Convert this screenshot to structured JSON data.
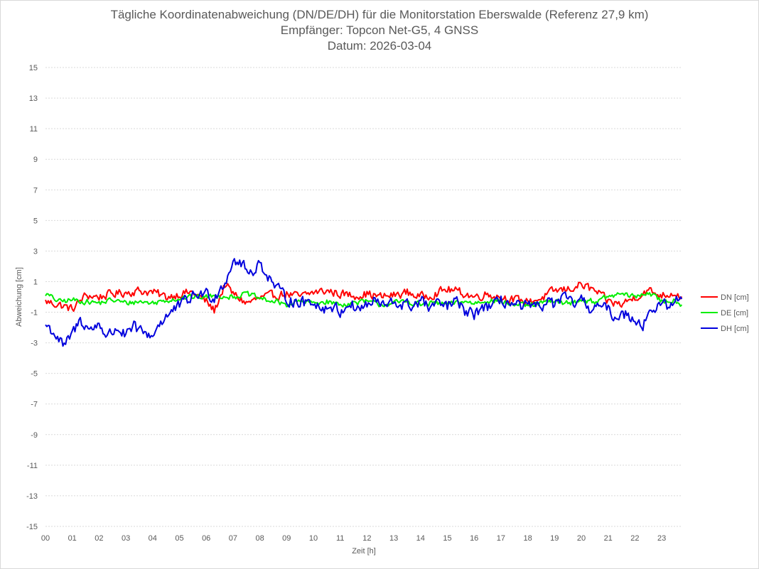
{
  "chart_data": {
    "type": "line",
    "title_lines": [
      "Tägliche Koordinatenabweichung (DN/DE/DH) für die Monitorstation Eberswalde (Referenz 27,9 km)",
      "Empfänger: Topcon Net-G5, 4 GNSS",
      "Datum: 2026-03-04"
    ],
    "xlabel": "Zeit [h]",
    "ylabel": "Abweichung [cm]",
    "ylim": [
      -15,
      15
    ],
    "xlim": [
      0,
      24
    ],
    "yticks": [
      "15",
      "13",
      "11",
      "9",
      "7",
      "5",
      "3",
      "1",
      "-1",
      "-3",
      "-5",
      "-7",
      "-9",
      "-11",
      "-13",
      "-15"
    ],
    "xticks": [
      "00",
      "01",
      "02",
      "03",
      "04",
      "05",
      "06",
      "07",
      "08",
      "09",
      "10",
      "11",
      "12",
      "13",
      "14",
      "15",
      "16",
      "17",
      "18",
      "19",
      "20",
      "21",
      "22",
      "23"
    ],
    "grid": true,
    "legend_position": "right",
    "series": [
      {
        "name": "DN [cm]",
        "color": "#ff0000",
        "anchors": [
          [
            0,
            -0.3
          ],
          [
            0.5,
            -0.5
          ],
          [
            1,
            -0.8
          ],
          [
            1.5,
            0.1
          ],
          [
            2,
            0.0
          ],
          [
            2.5,
            0.2
          ],
          [
            3,
            0.3
          ],
          [
            3.5,
            0.4
          ],
          [
            4,
            0.3
          ],
          [
            4.5,
            0.0
          ],
          [
            5,
            0.2
          ],
          [
            5.5,
            0.3
          ],
          [
            6,
            -0.3
          ],
          [
            6.3,
            -0.9
          ],
          [
            6.7,
            0.8
          ],
          [
            7,
            0.2
          ],
          [
            7.5,
            -0.4
          ],
          [
            8,
            -0.1
          ],
          [
            8.5,
            0.1
          ],
          [
            9,
            0.2
          ],
          [
            9.5,
            0.0
          ],
          [
            10,
            0.3
          ],
          [
            10.5,
            0.4
          ],
          [
            11,
            0.2
          ],
          [
            11.5,
            0.1
          ],
          [
            12,
            0.2
          ],
          [
            12.5,
            0.0
          ],
          [
            13,
            0.1
          ],
          [
            13.5,
            0.3
          ],
          [
            14,
            0.0
          ],
          [
            14.5,
            0.2
          ],
          [
            15,
            0.5
          ],
          [
            15.5,
            0.3
          ],
          [
            16,
            0.0
          ],
          [
            16.5,
            0.2
          ],
          [
            17,
            0.0
          ],
          [
            17.5,
            -0.2
          ],
          [
            18,
            -0.3
          ],
          [
            18.5,
            -0.1
          ],
          [
            19,
            0.4
          ],
          [
            19.5,
            0.5
          ],
          [
            20,
            0.8
          ],
          [
            20.5,
            0.4
          ],
          [
            21,
            -0.3
          ],
          [
            21.5,
            -0.5
          ],
          [
            22,
            0.0
          ],
          [
            22.5,
            0.4
          ],
          [
            23,
            0.1
          ],
          [
            23.5,
            0.3
          ],
          [
            23.75,
            0.0
          ]
        ],
        "noise": 0.4
      },
      {
        "name": "DE [cm]",
        "color": "#00ee00",
        "anchors": [
          [
            0,
            0.2
          ],
          [
            0.5,
            -0.3
          ],
          [
            1,
            -0.2
          ],
          [
            1.5,
            -0.3
          ],
          [
            2,
            -0.4
          ],
          [
            2.5,
            -0.2
          ],
          [
            3,
            -0.4
          ],
          [
            3.5,
            -0.3
          ],
          [
            4,
            -0.4
          ],
          [
            4.5,
            -0.2
          ],
          [
            5,
            -0.1
          ],
          [
            5.5,
            0.0
          ],
          [
            6,
            0.0
          ],
          [
            6.5,
            0.1
          ],
          [
            7,
            0.0
          ],
          [
            7.5,
            0.2
          ],
          [
            8,
            -0.1
          ],
          [
            8.5,
            -0.3
          ],
          [
            9,
            -0.5
          ],
          [
            9.5,
            -0.3
          ],
          [
            10,
            -0.4
          ],
          [
            10.5,
            -0.3
          ],
          [
            11,
            -0.5
          ],
          [
            11.5,
            -0.4
          ],
          [
            12,
            -0.3
          ],
          [
            12.5,
            -0.5
          ],
          [
            13,
            -0.4
          ],
          [
            13.5,
            -0.3
          ],
          [
            14,
            -0.5
          ],
          [
            14.5,
            -0.4
          ],
          [
            15,
            -0.5
          ],
          [
            15.5,
            -0.3
          ],
          [
            16,
            -0.4
          ],
          [
            16.5,
            -0.2
          ],
          [
            17,
            -0.3
          ],
          [
            17.5,
            -0.5
          ],
          [
            18,
            -0.6
          ],
          [
            18.5,
            -0.4
          ],
          [
            19,
            -0.3
          ],
          [
            19.5,
            -0.4
          ],
          [
            20,
            -0.2
          ],
          [
            20.5,
            -0.3
          ],
          [
            21,
            0.0
          ],
          [
            21.5,
            0.2
          ],
          [
            22,
            0.0
          ],
          [
            22.5,
            0.3
          ],
          [
            23,
            -0.3
          ],
          [
            23.5,
            -0.2
          ],
          [
            23.75,
            -0.5
          ]
        ],
        "noise": 0.25
      },
      {
        "name": "DH [cm]",
        "color": "#0000dd",
        "anchors": [
          [
            0,
            -1.8
          ],
          [
            0.3,
            -2.3
          ],
          [
            0.7,
            -3.3
          ],
          [
            1.0,
            -2.4
          ],
          [
            1.3,
            -1.5
          ],
          [
            1.7,
            -2.2
          ],
          [
            2.0,
            -1.7
          ],
          [
            2.3,
            -2.6
          ],
          [
            2.7,
            -2.0
          ],
          [
            3.0,
            -2.6
          ],
          [
            3.3,
            -2.0
          ],
          [
            3.7,
            -2.4
          ],
          [
            4.0,
            -2.5
          ],
          [
            4.3,
            -1.6
          ],
          [
            4.7,
            -1.0
          ],
          [
            5.0,
            -0.6
          ],
          [
            5.3,
            -0.2
          ],
          [
            5.7,
            0.2
          ],
          [
            6.0,
            0.2
          ],
          [
            6.3,
            0.0
          ],
          [
            6.7,
            1.0
          ],
          [
            7.0,
            2.4
          ],
          [
            7.3,
            2.2
          ],
          [
            7.6,
            1.5
          ],
          [
            8.0,
            2.2
          ],
          [
            8.3,
            1.4
          ],
          [
            8.6,
            0.6
          ],
          [
            9.0,
            -0.1
          ],
          [
            9.3,
            -0.3
          ],
          [
            9.7,
            -0.4
          ],
          [
            10.0,
            -0.2
          ],
          [
            10.3,
            -0.8
          ],
          [
            10.7,
            -0.6
          ],
          [
            11.0,
            -1.0
          ],
          [
            11.3,
            -0.4
          ],
          [
            11.7,
            -0.8
          ],
          [
            12.0,
            -0.5
          ],
          [
            12.3,
            -0.3
          ],
          [
            12.7,
            -0.6
          ],
          [
            13.0,
            -0.4
          ],
          [
            13.3,
            -0.5
          ],
          [
            13.7,
            -0.6
          ],
          [
            14.0,
            -0.2
          ],
          [
            14.3,
            -0.7
          ],
          [
            14.7,
            -0.5
          ],
          [
            15.0,
            -0.6
          ],
          [
            15.3,
            -0.3
          ],
          [
            15.7,
            -1.0
          ],
          [
            16.0,
            -1.2
          ],
          [
            16.3,
            -0.6
          ],
          [
            16.7,
            -0.7
          ],
          [
            17.0,
            -0.2
          ],
          [
            17.3,
            -0.4
          ],
          [
            17.7,
            -0.7
          ],
          [
            18.0,
            -0.6
          ],
          [
            18.3,
            -0.8
          ],
          [
            18.7,
            -0.3
          ],
          [
            19.0,
            -0.5
          ],
          [
            19.3,
            -0.1
          ],
          [
            19.7,
            -0.4
          ],
          [
            20.0,
            -0.3
          ],
          [
            20.3,
            -0.7
          ],
          [
            20.7,
            -0.6
          ],
          [
            21.0,
            -0.9
          ],
          [
            21.3,
            -1.3
          ],
          [
            21.7,
            -1.1
          ],
          [
            22.0,
            -1.4
          ],
          [
            22.3,
            -1.8
          ],
          [
            22.6,
            -0.8
          ],
          [
            23.0,
            -0.6
          ],
          [
            23.3,
            -0.5
          ],
          [
            23.6,
            -0.2
          ],
          [
            23.75,
            -0.3
          ]
        ],
        "noise": 0.55
      }
    ]
  }
}
